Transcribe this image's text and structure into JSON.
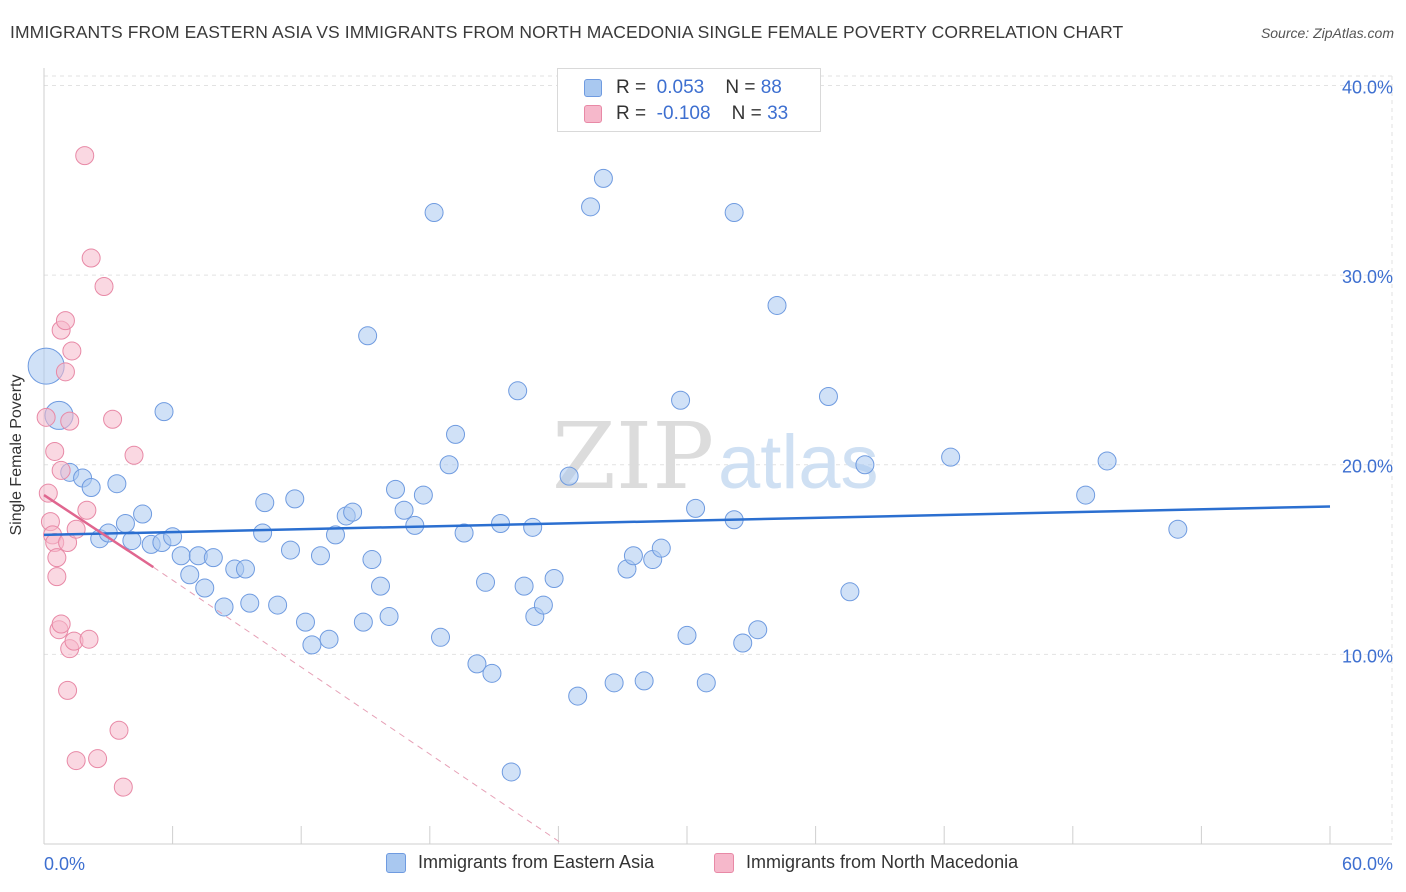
{
  "title": "IMMIGRANTS FROM EASTERN ASIA VS IMMIGRANTS FROM NORTH MACEDONIA SINGLE FEMALE POVERTY CORRELATION CHART",
  "source": "Source: ZipAtlas.com",
  "watermark": {
    "zip": "ZIP",
    "atlas": "atlas"
  },
  "legend": {
    "r_label": "R =",
    "n_label": "N =",
    "rows": [
      {
        "r": "0.053",
        "n": "88",
        "color": "#a9c8f0",
        "edge": "#6f9be0"
      },
      {
        "r": "-0.108",
        "n": "33",
        "color": "#f6b8cb",
        "edge": "#e889a6"
      }
    ]
  },
  "chart_data": {
    "type": "scatter",
    "title": "IMMIGRANTS FROM EASTERN ASIA VS IMMIGRANTS FROM NORTH MACEDONIA SINGLE FEMALE POVERTY CORRELATION CHART",
    "xlabel": "",
    "ylabel": "Single Female Poverty",
    "xlim": [
      0,
      60
    ],
    "ylim": [
      0,
      40.5
    ],
    "x_tick_labels": [
      "0.0%",
      "60.0%"
    ],
    "y_ticks": [
      10,
      20,
      30,
      40
    ],
    "y_tick_labels": [
      "10.0%",
      "20.0%",
      "30.0%",
      "40.0%"
    ],
    "grid": true,
    "legend_position": "top-center",
    "series": [
      {
        "name": "Immigrants from Eastern Asia",
        "color": "#a9c8f0",
        "edge": "#6f9be0",
        "trend": {
          "x": [
            0,
            60
          ],
          "y": [
            16.3,
            17.8
          ],
          "color": "#2b6fd0"
        },
        "points": [
          [
            0.1,
            25.2,
            3
          ],
          [
            0.7,
            22.6,
            2
          ],
          [
            1.2,
            19.6,
            1
          ],
          [
            1.8,
            19.3,
            1
          ],
          [
            2.2,
            18.8,
            1
          ],
          [
            2.6,
            16.1,
            1
          ],
          [
            3.0,
            16.4,
            1
          ],
          [
            3.4,
            19.0,
            1
          ],
          [
            3.8,
            16.9,
            1
          ],
          [
            4.1,
            16.0,
            1
          ],
          [
            4.6,
            17.4,
            1
          ],
          [
            5.0,
            15.8,
            1
          ],
          [
            5.5,
            15.9,
            1
          ],
          [
            5.6,
            22.8,
            1
          ],
          [
            6.0,
            16.2,
            1
          ],
          [
            6.4,
            15.2,
            1
          ],
          [
            6.8,
            14.2,
            1
          ],
          [
            7.2,
            15.2,
            1
          ],
          [
            7.5,
            13.5,
            1
          ],
          [
            7.9,
            15.1,
            1
          ],
          [
            8.4,
            12.5,
            1
          ],
          [
            8.9,
            14.5,
            1
          ],
          [
            9.4,
            14.5,
            1
          ],
          [
            9.6,
            12.7,
            1
          ],
          [
            10.2,
            16.4,
            1
          ],
          [
            10.3,
            18.0,
            1
          ],
          [
            10.9,
            12.6,
            1
          ],
          [
            11.5,
            15.5,
            1
          ],
          [
            11.7,
            18.2,
            1
          ],
          [
            12.2,
            11.7,
            1
          ],
          [
            12.5,
            10.5,
            1
          ],
          [
            12.9,
            15.2,
            1
          ],
          [
            13.3,
            10.8,
            1
          ],
          [
            13.6,
            16.3,
            1
          ],
          [
            14.1,
            17.3,
            1
          ],
          [
            14.4,
            17.5,
            1
          ],
          [
            14.9,
            11.7,
            1
          ],
          [
            15.1,
            26.8,
            1
          ],
          [
            15.3,
            15.0,
            1
          ],
          [
            15.7,
            13.6,
            1
          ],
          [
            16.1,
            12.0,
            1
          ],
          [
            16.4,
            18.7,
            1
          ],
          [
            16.8,
            17.6,
            1
          ],
          [
            17.3,
            16.8,
            1
          ],
          [
            17.7,
            18.4,
            1
          ],
          [
            18.2,
            33.3,
            1
          ],
          [
            18.5,
            10.9,
            1
          ],
          [
            18.9,
            20.0,
            1
          ],
          [
            19.2,
            21.6,
            1
          ],
          [
            19.6,
            16.4,
            1
          ],
          [
            20.2,
            9.5,
            1
          ],
          [
            20.6,
            13.8,
            1
          ],
          [
            20.9,
            9.0,
            1
          ],
          [
            21.3,
            16.9,
            1
          ],
          [
            21.8,
            3.8,
            1
          ],
          [
            22.1,
            23.9,
            1
          ],
          [
            22.4,
            13.6,
            1
          ],
          [
            22.8,
            16.7,
            1
          ],
          [
            22.9,
            12.0,
            1
          ],
          [
            23.3,
            12.6,
            1
          ],
          [
            23.8,
            14.0,
            1
          ],
          [
            24.5,
            19.4,
            1
          ],
          [
            24.9,
            7.8,
            1
          ],
          [
            25.5,
            33.6,
            1
          ],
          [
            26.1,
            35.1,
            1
          ],
          [
            26.6,
            8.5,
            1
          ],
          [
            27.2,
            14.5,
            1
          ],
          [
            27.5,
            15.2,
            1
          ],
          [
            28.0,
            8.6,
            1
          ],
          [
            28.4,
            15.0,
            1
          ],
          [
            28.8,
            15.6,
            1
          ],
          [
            29.7,
            23.4,
            1
          ],
          [
            30.0,
            11.0,
            1
          ],
          [
            30.4,
            17.7,
            1
          ],
          [
            30.9,
            8.5,
            1
          ],
          [
            32.2,
            33.3,
            1
          ],
          [
            32.2,
            17.1,
            1
          ],
          [
            32.6,
            10.6,
            1
          ],
          [
            33.3,
            11.3,
            1
          ],
          [
            34.2,
            28.4,
            1
          ],
          [
            36.6,
            23.6,
            1
          ],
          [
            37.6,
            13.3,
            1
          ],
          [
            38.3,
            20.0,
            1
          ],
          [
            42.3,
            20.4,
            1
          ],
          [
            48.6,
            18.4,
            1
          ],
          [
            49.6,
            20.2,
            1
          ],
          [
            52.9,
            16.6,
            1
          ]
        ]
      },
      {
        "name": "Immigrants from North Macedonia",
        "color": "#f6b8cb",
        "edge": "#e889a6",
        "trend": {
          "x": [
            0,
            5.1
          ],
          "y": [
            18.4,
            14.6
          ],
          "color": "#e0668f"
        },
        "trend_extension": {
          "x": [
            5.1,
            24.2
          ],
          "y": [
            14.6,
            0
          ],
          "color": "#e6a0b6"
        },
        "points": [
          [
            0.1,
            22.5,
            1
          ],
          [
            0.2,
            18.5,
            1
          ],
          [
            0.3,
            17.0,
            1
          ],
          [
            0.4,
            16.3,
            1
          ],
          [
            0.5,
            20.7,
            1
          ],
          [
            0.5,
            15.9,
            1
          ],
          [
            0.6,
            15.1,
            1
          ],
          [
            0.6,
            14.1,
            1
          ],
          [
            0.7,
            11.3,
            1
          ],
          [
            0.8,
            19.7,
            1
          ],
          [
            0.8,
            27.1,
            1
          ],
          [
            0.8,
            11.6,
            1
          ],
          [
            1.0,
            27.6,
            1
          ],
          [
            1.0,
            24.9,
            1
          ],
          [
            1.1,
            15.9,
            1
          ],
          [
            1.1,
            8.1,
            1
          ],
          [
            1.2,
            22.3,
            1
          ],
          [
            1.2,
            10.3,
            1
          ],
          [
            1.3,
            26.0,
            1
          ],
          [
            1.4,
            10.7,
            1
          ],
          [
            1.5,
            16.6,
            1
          ],
          [
            1.5,
            4.4,
            1
          ],
          [
            1.9,
            36.3,
            1
          ],
          [
            2.0,
            17.6,
            1
          ],
          [
            2.1,
            10.8,
            1
          ],
          [
            2.2,
            30.9,
            1
          ],
          [
            2.5,
            4.5,
            1
          ],
          [
            2.8,
            29.4,
            1
          ],
          [
            3.2,
            22.4,
            1
          ],
          [
            3.5,
            6.0,
            1
          ],
          [
            3.7,
            3.0,
            1
          ],
          [
            4.2,
            20.5,
            1
          ]
        ]
      }
    ]
  }
}
